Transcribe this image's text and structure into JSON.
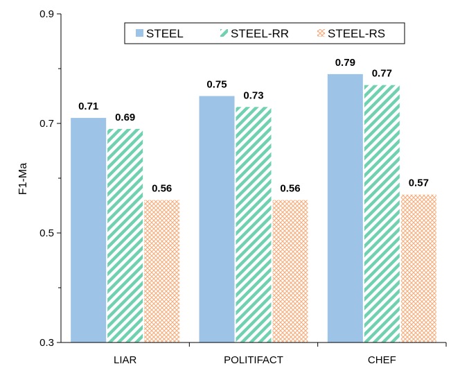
{
  "chart_data": {
    "type": "bar",
    "title": "",
    "xlabel": "",
    "ylabel": "F1-Ma",
    "ylim": [
      0.3,
      0.9
    ],
    "yticks": [
      0.3,
      0.5,
      0.7,
      0.9
    ],
    "ytick_labels": [
      "0.3",
      "0.5",
      "0.7",
      "0.9"
    ],
    "minor_yticks": [
      0.4,
      0.6,
      0.8
    ],
    "grid": false,
    "legend_position": "top-right",
    "categories": [
      "LIAR",
      "POLITIFACT",
      "CHEF"
    ],
    "series": [
      {
        "name": "STEEL",
        "values": [
          0.71,
          0.75,
          0.79
        ],
        "labels": [
          "0.71",
          "0.75",
          "0.79"
        ],
        "color": "#9dc3e6",
        "pattern": "solid"
      },
      {
        "name": "STEEL-RR",
        "values": [
          0.69,
          0.73,
          0.77
        ],
        "labels": [
          "0.69",
          "0.73",
          "0.77"
        ],
        "color": "#6fd1b0",
        "pattern": "diagonal-stripes"
      },
      {
        "name": "STEEL-RS",
        "values": [
          0.56,
          0.56,
          0.57
        ],
        "labels": [
          "0.56",
          "0.56",
          "0.57"
        ],
        "color": "#f4b183",
        "pattern": "crosshatch"
      }
    ]
  }
}
